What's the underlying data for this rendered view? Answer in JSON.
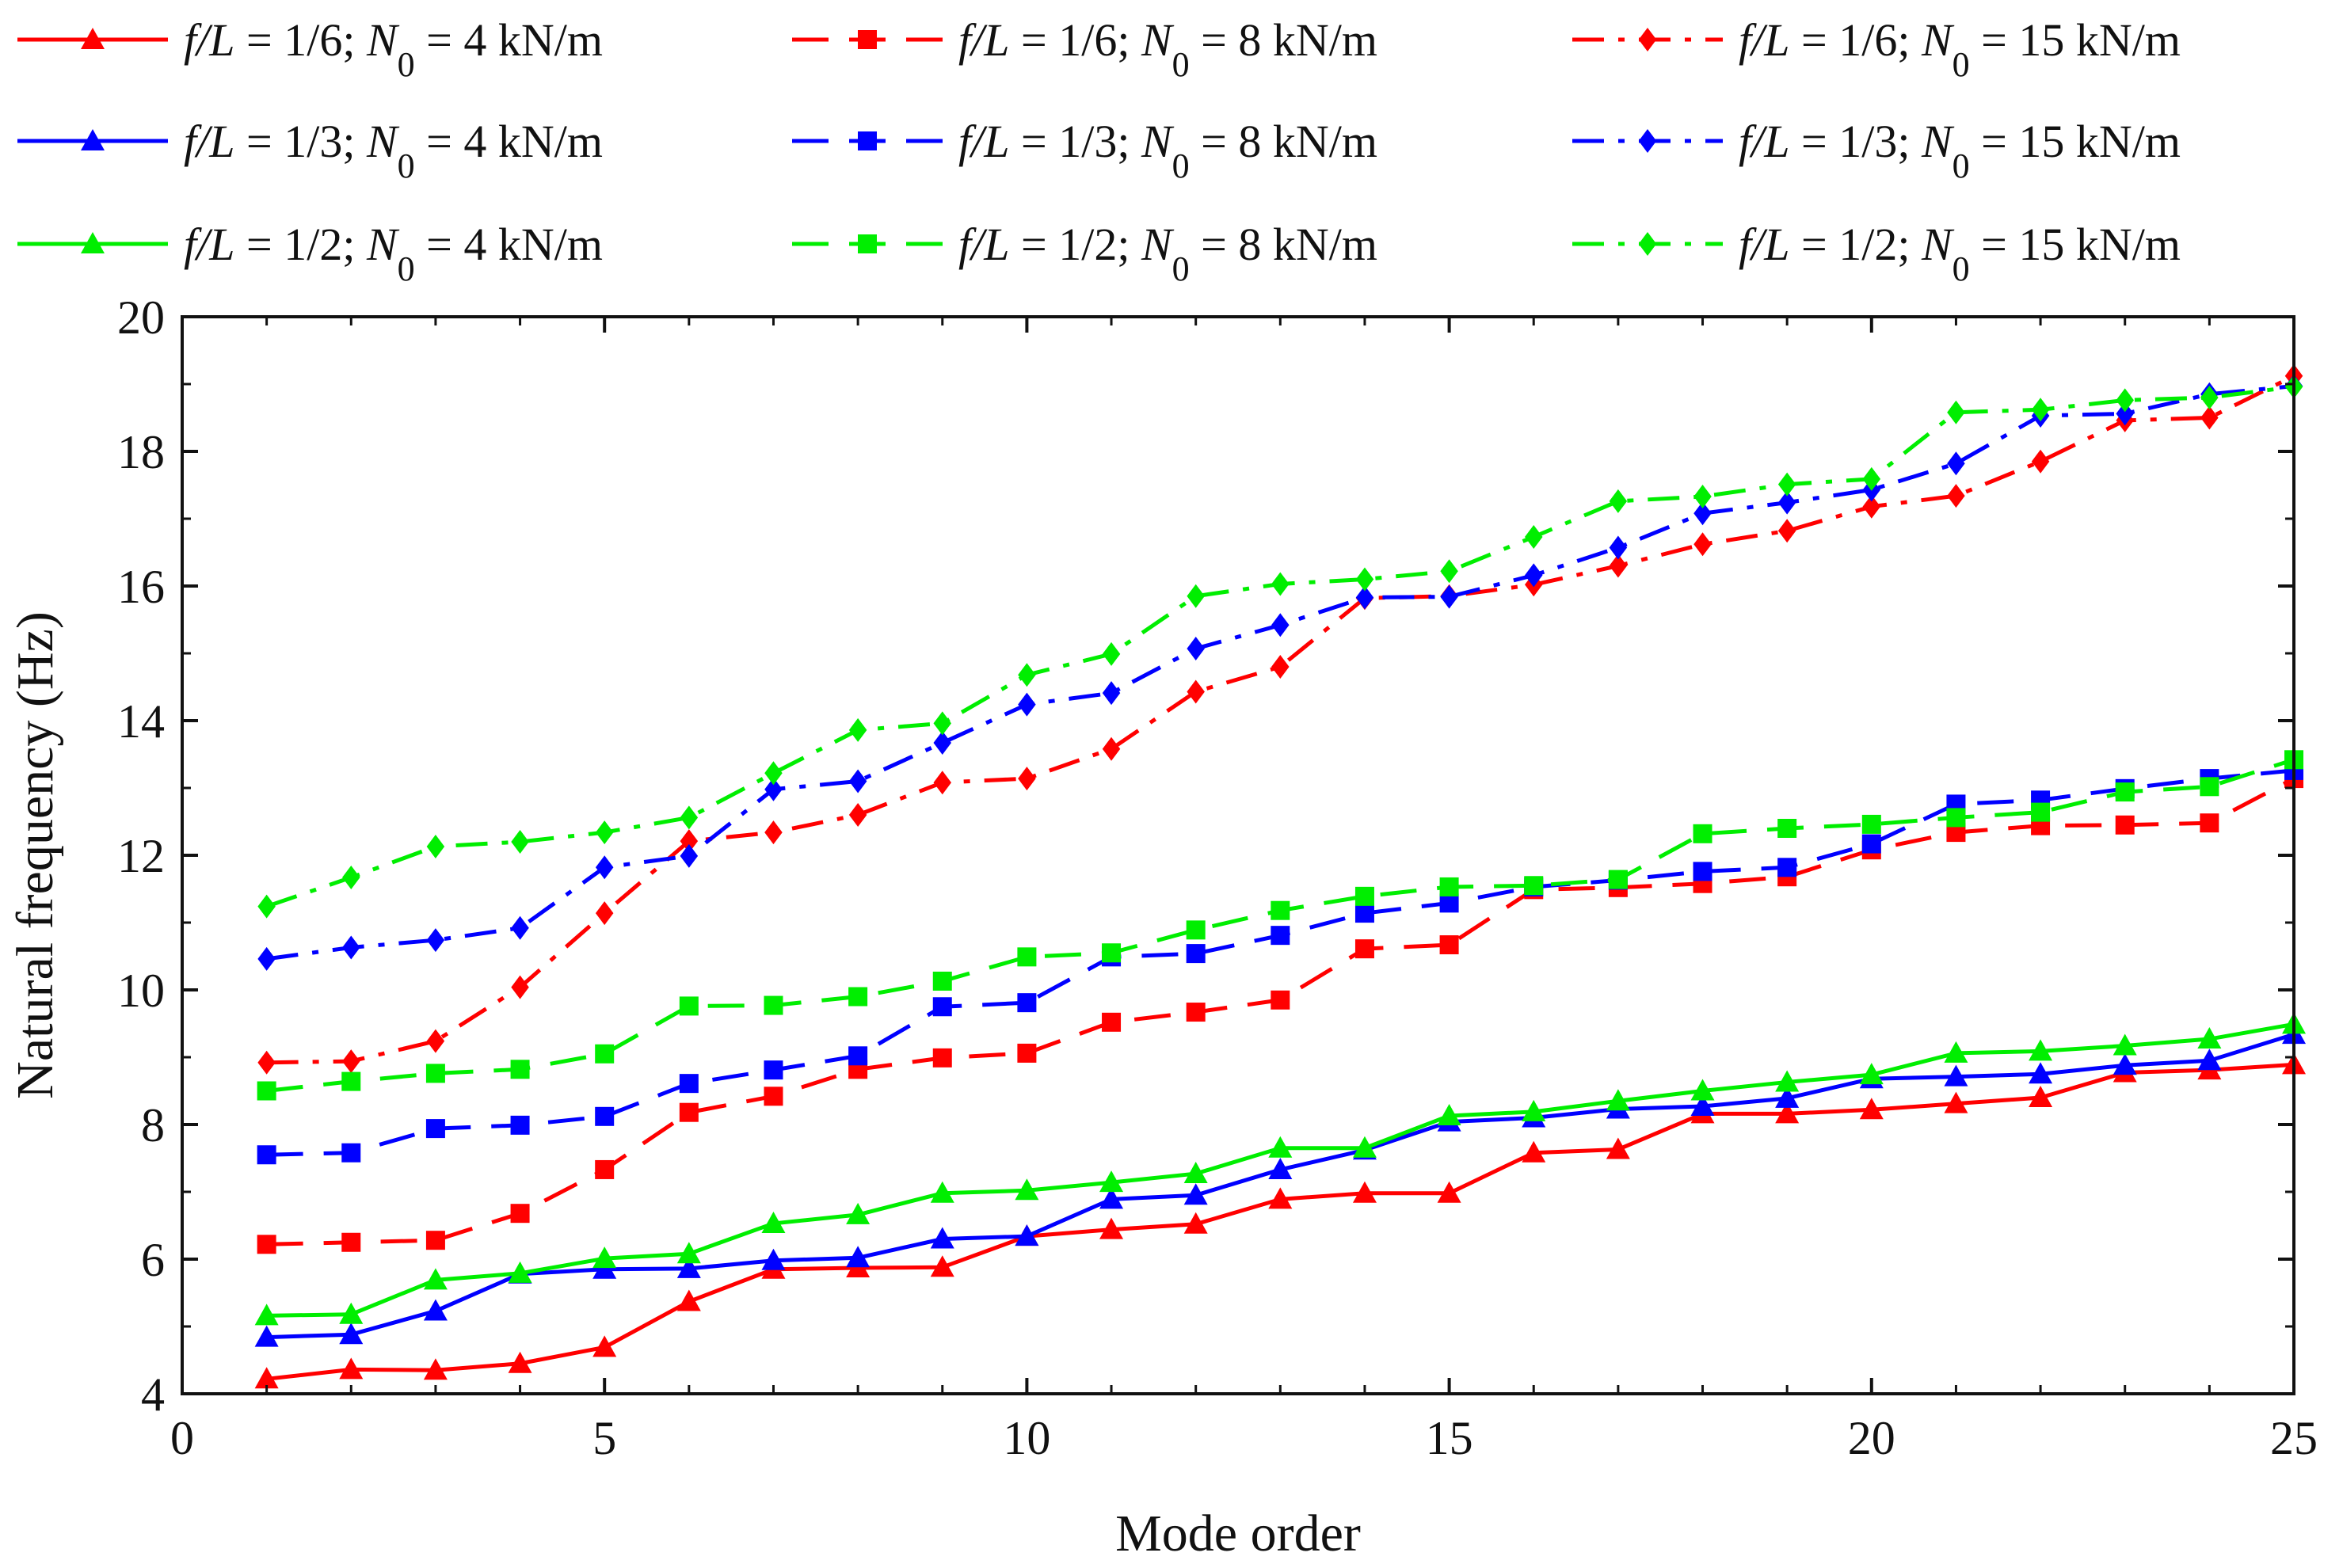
{
  "chart_data": {
    "type": "line",
    "xlabel": "Mode order",
    "ylabel": "Natural frequency (Hz)",
    "xlim": [
      0,
      25
    ],
    "ylim": [
      4,
      20
    ],
    "x_ticks": [
      0,
      5,
      10,
      15,
      20,
      25
    ],
    "y_ticks": [
      4,
      6,
      8,
      10,
      12,
      14,
      16,
      18,
      20
    ],
    "legend_position": "top",
    "x": [
      1,
      2,
      3,
      4,
      5,
      6,
      7,
      8,
      9,
      10,
      11,
      12,
      13,
      14,
      15,
      16,
      17,
      18,
      19,
      20,
      21,
      22,
      23,
      24,
      25
    ],
    "series": [
      {
        "name": "f/L = 1/6; N0 = 4 kN/m",
        "label": {
          "ratio_sym": "f/L",
          "ratio": " = 1/6; ",
          "n_sym": "N",
          "n_sub": "0",
          "n_val": " = 4 kN/m"
        },
        "color": "#ff0000",
        "line_style": "solid",
        "marker": "triangle",
        "values": [
          4.22,
          4.36,
          4.35,
          4.45,
          4.69,
          5.37,
          5.85,
          5.87,
          5.88,
          6.34,
          6.44,
          6.52,
          6.89,
          6.98,
          6.98,
          7.58,
          7.63,
          8.16,
          8.16,
          8.22,
          8.31,
          8.4,
          8.77,
          8.81,
          8.89
        ]
      },
      {
        "name": "f/L = 1/6; N0 = 8 kN/m",
        "label": {
          "ratio_sym": "f/L",
          "ratio": " = 1/6; ",
          "n_sym": "N",
          "n_sub": "0",
          "n_val": " = 8 kN/m"
        },
        "color": "#ff0000",
        "line_style": "dashed",
        "marker": "square",
        "values": [
          6.22,
          6.25,
          6.28,
          6.68,
          7.33,
          8.18,
          8.42,
          8.82,
          8.99,
          9.06,
          9.52,
          9.67,
          9.85,
          10.61,
          10.67,
          11.49,
          11.52,
          11.58,
          11.68,
          12.08,
          12.34,
          12.44,
          12.45,
          12.48,
          13.14
        ]
      },
      {
        "name": "f/L = 1/6; N0 = 15 kN/m",
        "label": {
          "ratio_sym": "f/L",
          "ratio": " = 1/6; ",
          "n_sym": "N",
          "n_sub": "0",
          "n_val": " = 15 kN/m"
        },
        "color": "#ff0000",
        "line_style": "dashdot",
        "marker": "diamond",
        "values": [
          8.92,
          8.94,
          9.24,
          10.04,
          11.14,
          12.21,
          12.34,
          12.6,
          13.08,
          13.14,
          13.58,
          14.43,
          14.8,
          15.82,
          15.85,
          16.02,
          16.3,
          16.62,
          16.82,
          17.18,
          17.34,
          17.85,
          18.46,
          18.5,
          19.12
        ]
      },
      {
        "name": "f/L = 1/3; N0 = 4 kN/m",
        "label": {
          "ratio_sym": "f/L",
          "ratio": " = 1/3; ",
          "n_sym": "N",
          "n_sub": "0",
          "n_val": " = 4 kN/m"
        },
        "color": "#0000ff",
        "line_style": "solid",
        "marker": "triangle",
        "values": [
          4.84,
          4.88,
          5.23,
          5.78,
          5.85,
          5.86,
          5.98,
          6.02,
          6.3,
          6.34,
          6.89,
          6.95,
          7.33,
          7.62,
          8.04,
          8.1,
          8.23,
          8.27,
          8.39,
          8.68,
          8.71,
          8.75,
          8.88,
          8.95,
          9.34
        ]
      },
      {
        "name": "f/L = 1/3; N0 = 8 kN/m",
        "label": {
          "ratio_sym": "f/L",
          "ratio": " = 1/3; ",
          "n_sym": "N",
          "n_sub": "0",
          "n_val": " = 8 kN/m"
        },
        "color": "#0000ff",
        "line_style": "dashed",
        "marker": "square",
        "values": [
          7.55,
          7.58,
          7.94,
          7.99,
          8.12,
          8.61,
          8.81,
          9.02,
          9.75,
          9.81,
          10.49,
          10.54,
          10.81,
          11.14,
          11.29,
          11.53,
          11.63,
          11.76,
          11.82,
          12.17,
          12.76,
          12.82,
          12.99,
          13.14,
          13.26
        ]
      },
      {
        "name": "f/L = 1/3; N0 = 15 kN/m",
        "label": {
          "ratio_sym": "f/L",
          "ratio": " = 1/3; ",
          "n_sym": "N",
          "n_sub": "0",
          "n_val": " = 15 kN/m"
        },
        "color": "#0000ff",
        "line_style": "dashdot",
        "marker": "diamond",
        "values": [
          10.46,
          10.63,
          10.74,
          10.92,
          11.82,
          11.99,
          12.98,
          13.1,
          13.67,
          14.24,
          14.41,
          15.07,
          15.42,
          15.83,
          15.84,
          16.16,
          16.57,
          17.08,
          17.24,
          17.43,
          17.82,
          18.53,
          18.56,
          18.85,
          18.97
        ]
      },
      {
        "name": "f/L = 1/2; N0 = 4 kN/m",
        "label": {
          "ratio_sym": "f/L",
          "ratio": " = 1/2; ",
          "n_sym": "N",
          "n_sub": "0",
          "n_val": " = 4 kN/m"
        },
        "color": "#00ee00",
        "line_style": "solid",
        "marker": "triangle",
        "values": [
          5.16,
          5.18,
          5.69,
          5.79,
          6.01,
          6.08,
          6.53,
          6.66,
          6.98,
          7.02,
          7.14,
          7.27,
          7.65,
          7.65,
          8.13,
          8.19,
          8.35,
          8.5,
          8.63,
          8.74,
          9.06,
          9.09,
          9.17,
          9.27,
          9.49
        ]
      },
      {
        "name": "f/L = 1/2; N0 = 8 kN/m",
        "label": {
          "ratio_sym": "f/L",
          "ratio": " = 1/2; ",
          "n_sym": "N",
          "n_sub": "0",
          "n_val": " = 8 kN/m"
        },
        "color": "#00ee00",
        "line_style": "dashed",
        "marker": "square",
        "values": [
          8.5,
          8.64,
          8.76,
          8.82,
          9.05,
          9.76,
          9.77,
          9.9,
          10.13,
          10.49,
          10.55,
          10.89,
          11.18,
          11.39,
          11.53,
          11.55,
          11.64,
          12.32,
          12.4,
          12.46,
          12.56,
          12.64,
          12.94,
          13.02,
          13.42
        ]
      },
      {
        "name": "f/L = 1/2; N0 = 15 kN/m",
        "label": {
          "ratio_sym": "f/L",
          "ratio": " = 1/2; ",
          "n_sym": "N",
          "n_sub": "0",
          "n_val": " = 15 kN/m"
        },
        "color": "#00ee00",
        "line_style": "dashdot",
        "marker": "diamond",
        "values": [
          11.24,
          11.67,
          12.13,
          12.2,
          12.34,
          12.56,
          13.22,
          13.86,
          13.96,
          14.68,
          14.99,
          15.85,
          16.03,
          16.1,
          16.22,
          16.73,
          17.26,
          17.33,
          17.51,
          17.59,
          18.58,
          18.62,
          18.76,
          18.8,
          18.96
        ]
      }
    ]
  }
}
